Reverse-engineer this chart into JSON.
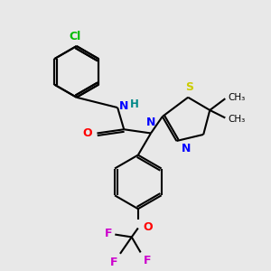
{
  "bg_color": "#e8e8e8",
  "bond_color": "#000000",
  "bond_lw": 1.5,
  "atom_colors": {
    "Cl": "#00bb00",
    "N": "#0000ff",
    "H": "#008888",
    "O": "#ff0000",
    "S": "#cccc00",
    "F": "#cc00cc"
  },
  "figsize": [
    3.0,
    3.0
  ],
  "dpi": 100,
  "xlim": [
    0,
    10
  ],
  "ylim": [
    0,
    10
  ]
}
